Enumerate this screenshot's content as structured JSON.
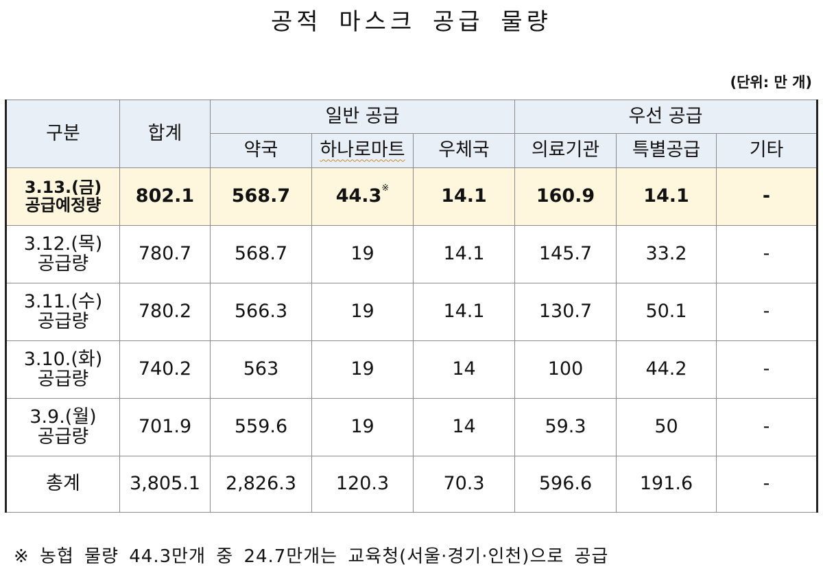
{
  "title": "공적 마스크 공급 물량",
  "unit": "(단위: 만 개)",
  "header": {
    "category": "구분",
    "total": "합계",
    "general_supply": "일반 공급",
    "priority_supply": "우선 공급",
    "columns": [
      "약국",
      "하나로마트",
      "우체국",
      "의료기관",
      "특별공급",
      "기타"
    ]
  },
  "rows": [
    {
      "label_line1": "3.13.(금)",
      "label_line2": "공급예정량",
      "total": "802.1",
      "values": [
        "568.7",
        "44.3",
        "14.1",
        "160.9",
        "14.1",
        "-"
      ],
      "mark": "※"
    },
    {
      "label_line1": "3.12.(목)",
      "label_line2": "공급량",
      "total": "780.7",
      "values": [
        "568.7",
        "19",
        "14.1",
        "145.7",
        "33.2",
        "-"
      ]
    },
    {
      "label_line1": "3.11.(수)",
      "label_line2": "공급량",
      "total": "780.2",
      "values": [
        "566.3",
        "19",
        "14.1",
        "130.7",
        "50.1",
        "-"
      ]
    },
    {
      "label_line1": "3.10.(화)",
      "label_line2": "공급량",
      "total": "740.2",
      "values": [
        "563",
        "19",
        "14",
        "100",
        "44.2",
        "-"
      ]
    },
    {
      "label_line1": "3.9.(월)",
      "label_line2": "공급량",
      "total": "701.9",
      "values": [
        "559.6",
        "19",
        "14",
        "59.3",
        "50",
        "-"
      ]
    }
  ],
  "totals": {
    "label": "총계",
    "total": "3,805.1",
    "values": [
      "2,826.3",
      "120.3",
      "70.3",
      "596.6",
      "191.6",
      "-"
    ]
  },
  "footnote": "※ 농협 물량 44.3만개 중 24.7만개는 교육청(서울·경기·인천)으로 공급",
  "colors": {
    "header_bg": "#e9eff7",
    "highlight_bg": "#fef6dd",
    "border": "#8a8a8a",
    "outer_border": "#222222"
  }
}
